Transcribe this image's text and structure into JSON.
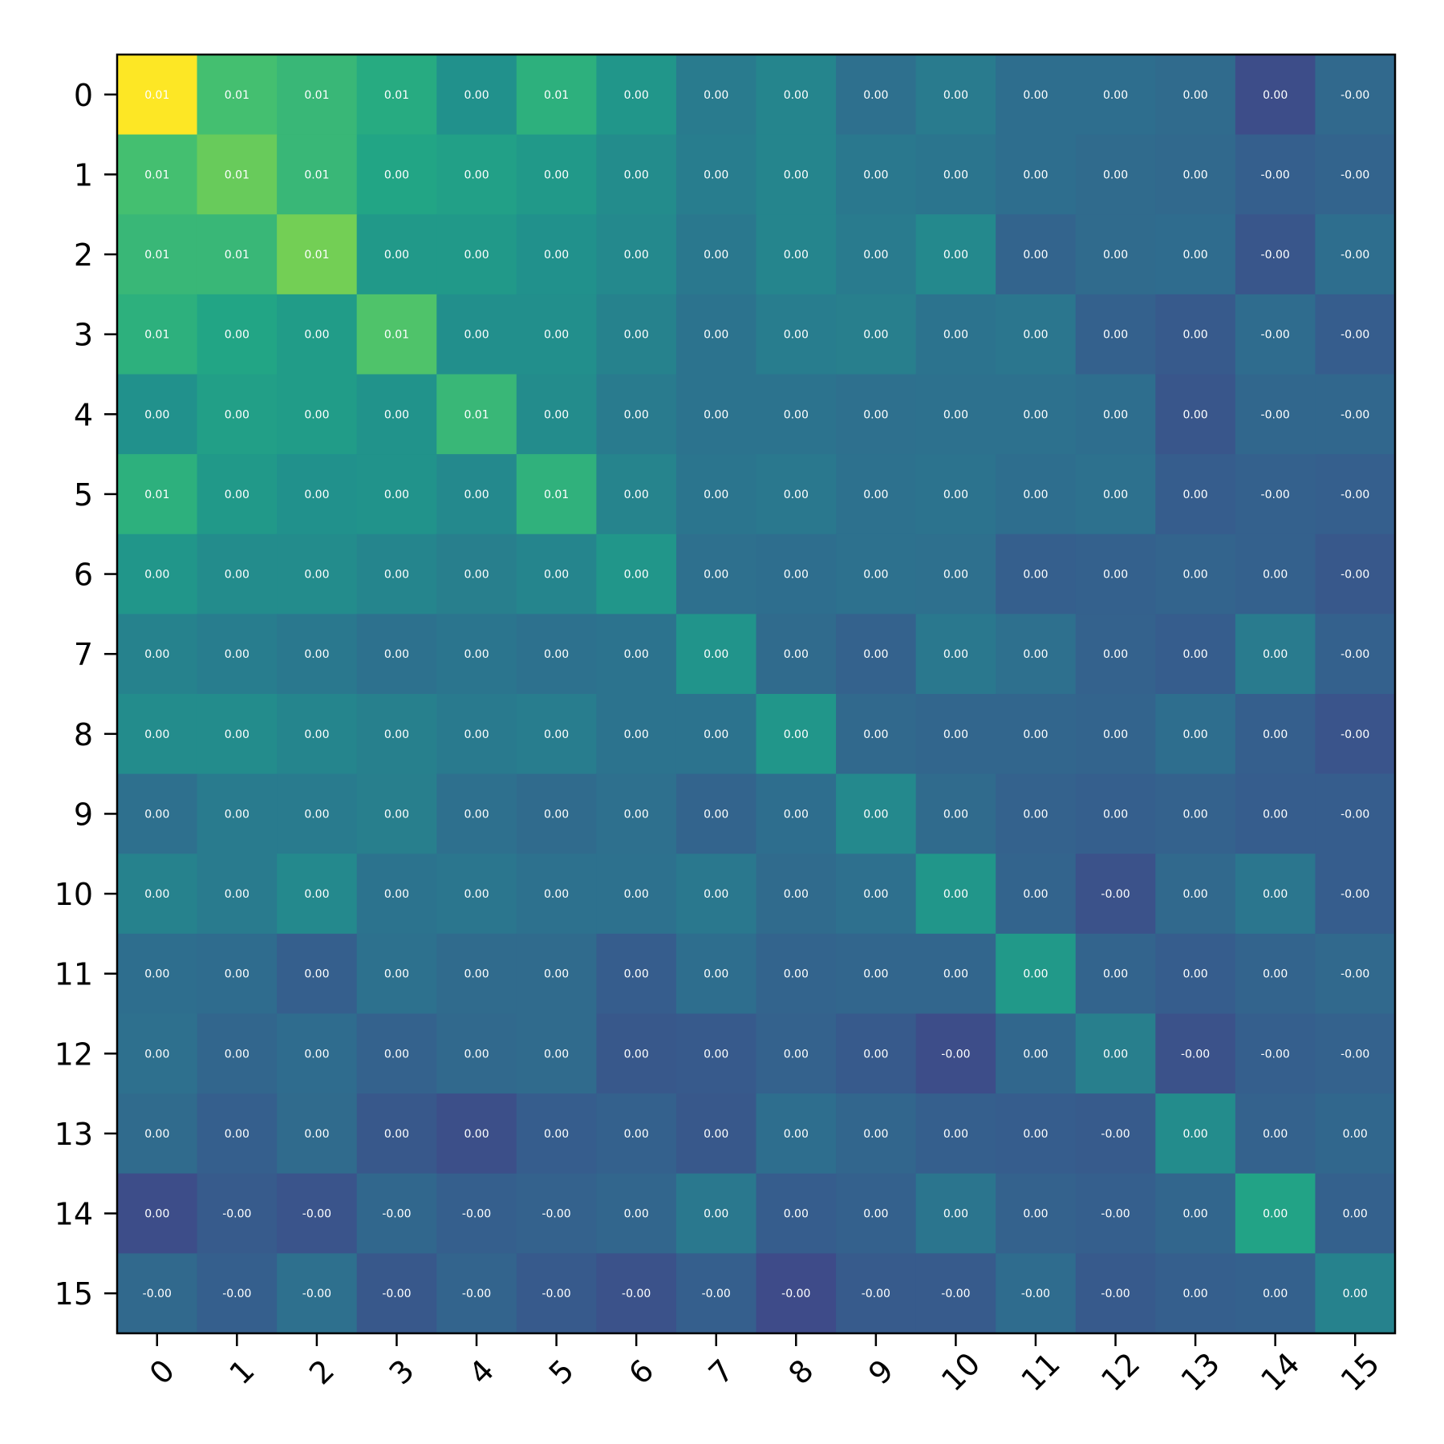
{
  "chart_data": {
    "type": "heatmap",
    "title": "",
    "xlabel": "",
    "ylabel": "",
    "colormap": "viridis",
    "x_ticks": [
      "0",
      "1",
      "2",
      "3",
      "4",
      "5",
      "6",
      "7",
      "8",
      "9",
      "10",
      "11",
      "12",
      "13",
      "14",
      "15"
    ],
    "y_ticks": [
      "0",
      "1",
      "2",
      "3",
      "4",
      "5",
      "6",
      "7",
      "8",
      "9",
      "10",
      "11",
      "12",
      "13",
      "14",
      "15"
    ],
    "value_range": [
      -0.5,
      1.0
    ],
    "intensity": [
      [
        1.0,
        0.55,
        0.5,
        0.42,
        0.25,
        0.45,
        0.28,
        0.12,
        0.18,
        0.05,
        0.12,
        0.04,
        0.04,
        0.02,
        -0.15,
        0.01
      ],
      [
        0.55,
        0.65,
        0.5,
        0.38,
        0.35,
        0.3,
        0.22,
        0.13,
        0.18,
        0.1,
        0.08,
        0.04,
        0.02,
        0.01,
        -0.05,
        -0.02
      ],
      [
        0.5,
        0.5,
        0.68,
        0.3,
        0.3,
        0.25,
        0.2,
        0.1,
        0.18,
        0.12,
        0.2,
        -0.02,
        0.02,
        0.03,
        -0.1,
        0.04
      ],
      [
        0.45,
        0.38,
        0.32,
        0.58,
        0.24,
        0.24,
        0.16,
        0.07,
        0.13,
        0.14,
        0.07,
        0.09,
        -0.04,
        -0.08,
        0.03,
        -0.06
      ],
      [
        0.25,
        0.34,
        0.32,
        0.26,
        0.5,
        0.22,
        0.12,
        0.07,
        0.07,
        0.05,
        0.06,
        0.06,
        0.04,
        -0.1,
        0.0,
        0.0
      ],
      [
        0.45,
        0.3,
        0.25,
        0.26,
        0.2,
        0.46,
        0.17,
        0.08,
        0.1,
        0.06,
        0.07,
        0.04,
        0.06,
        -0.06,
        -0.04,
        -0.05
      ],
      [
        0.28,
        0.22,
        0.22,
        0.18,
        0.14,
        0.18,
        0.28,
        0.05,
        0.04,
        0.06,
        0.05,
        -0.05,
        -0.04,
        -0.02,
        -0.04,
        -0.09
      ],
      [
        0.16,
        0.13,
        0.1,
        0.06,
        0.08,
        0.06,
        0.07,
        0.27,
        0.02,
        -0.03,
        0.1,
        0.05,
        -0.03,
        -0.06,
        0.12,
        -0.04
      ],
      [
        0.22,
        0.22,
        0.18,
        0.15,
        0.11,
        0.13,
        0.07,
        0.07,
        0.28,
        0.01,
        -0.01,
        -0.01,
        -0.02,
        0.04,
        -0.05,
        -0.11
      ],
      [
        0.05,
        0.12,
        0.12,
        0.14,
        0.05,
        0.02,
        0.05,
        -0.02,
        0.04,
        0.2,
        0.02,
        -0.03,
        -0.05,
        -0.03,
        -0.06,
        -0.06
      ],
      [
        0.16,
        0.12,
        0.2,
        0.07,
        0.09,
        0.06,
        0.06,
        0.1,
        0.02,
        0.05,
        0.28,
        -0.02,
        -0.12,
        0.01,
        0.09,
        -0.06
      ],
      [
        0.04,
        0.03,
        -0.05,
        0.06,
        0.02,
        0.02,
        -0.06,
        0.04,
        -0.02,
        -0.01,
        -0.01,
        0.3,
        -0.02,
        -0.06,
        -0.02,
        0.01
      ],
      [
        0.05,
        -0.01,
        0.03,
        -0.03,
        0.01,
        0.02,
        -0.09,
        -0.08,
        -0.03,
        -0.08,
        -0.15,
        0.0,
        0.14,
        -0.12,
        -0.05,
        -0.03
      ],
      [
        0.02,
        -0.05,
        0.02,
        -0.09,
        -0.14,
        -0.06,
        -0.04,
        -0.09,
        0.04,
        -0.01,
        -0.05,
        -0.06,
        -0.07,
        0.22,
        -0.03,
        0.0
      ],
      [
        -0.15,
        -0.07,
        -0.11,
        0.0,
        -0.05,
        -0.03,
        -0.01,
        0.1,
        -0.06,
        -0.04,
        0.08,
        -0.03,
        -0.05,
        -0.01,
        0.37,
        -0.04
      ],
      [
        0.01,
        -0.05,
        0.05,
        -0.09,
        -0.02,
        -0.08,
        -0.12,
        -0.05,
        -0.16,
        -0.07,
        -0.07,
        0.03,
        -0.08,
        -0.05,
        -0.04,
        0.16
      ]
    ],
    "cell_labels": [
      [
        "0.01",
        "0.01",
        "0.01",
        "0.01",
        "0.00",
        "0.01",
        "0.00",
        "0.00",
        "0.00",
        "0.00",
        "0.00",
        "0.00",
        "0.00",
        "0.00",
        "0.00",
        "-0.00"
      ],
      [
        "0.01",
        "0.01",
        "0.01",
        "0.00",
        "0.00",
        "0.00",
        "0.00",
        "0.00",
        "0.00",
        "0.00",
        "0.00",
        "0.00",
        "0.00",
        "0.00",
        "-0.00",
        "-0.00"
      ],
      [
        "0.01",
        "0.01",
        "0.01",
        "0.00",
        "0.00",
        "0.00",
        "0.00",
        "0.00",
        "0.00",
        "0.00",
        "0.00",
        "0.00",
        "0.00",
        "0.00",
        "-0.00",
        "-0.00"
      ],
      [
        "0.01",
        "0.00",
        "0.00",
        "0.01",
        "0.00",
        "0.00",
        "0.00",
        "0.00",
        "0.00",
        "0.00",
        "0.00",
        "0.00",
        "0.00",
        "0.00",
        "-0.00",
        "-0.00"
      ],
      [
        "0.00",
        "0.00",
        "0.00",
        "0.00",
        "0.01",
        "0.00",
        "0.00",
        "0.00",
        "0.00",
        "0.00",
        "0.00",
        "0.00",
        "0.00",
        "0.00",
        "-0.00",
        "-0.00"
      ],
      [
        "0.01",
        "0.00",
        "0.00",
        "0.00",
        "0.00",
        "0.01",
        "0.00",
        "0.00",
        "0.00",
        "0.00",
        "0.00",
        "0.00",
        "0.00",
        "0.00",
        "-0.00",
        "-0.00"
      ],
      [
        "0.00",
        "0.00",
        "0.00",
        "0.00",
        "0.00",
        "0.00",
        "0.00",
        "0.00",
        "0.00",
        "0.00",
        "0.00",
        "0.00",
        "0.00",
        "0.00",
        "0.00",
        "-0.00"
      ],
      [
        "0.00",
        "0.00",
        "0.00",
        "0.00",
        "0.00",
        "0.00",
        "0.00",
        "0.00",
        "0.00",
        "0.00",
        "0.00",
        "0.00",
        "0.00",
        "0.00",
        "0.00",
        "-0.00"
      ],
      [
        "0.00",
        "0.00",
        "0.00",
        "0.00",
        "0.00",
        "0.00",
        "0.00",
        "0.00",
        "0.00",
        "0.00",
        "0.00",
        "0.00",
        "0.00",
        "0.00",
        "0.00",
        "-0.00"
      ],
      [
        "0.00",
        "0.00",
        "0.00",
        "0.00",
        "0.00",
        "0.00",
        "0.00",
        "0.00",
        "0.00",
        "0.00",
        "0.00",
        "0.00",
        "0.00",
        "0.00",
        "0.00",
        "-0.00"
      ],
      [
        "0.00",
        "0.00",
        "0.00",
        "0.00",
        "0.00",
        "0.00",
        "0.00",
        "0.00",
        "0.00",
        "0.00",
        "0.00",
        "0.00",
        "-0.00",
        "0.00",
        "0.00",
        "-0.00"
      ],
      [
        "0.00",
        "0.00",
        "0.00",
        "0.00",
        "0.00",
        "0.00",
        "0.00",
        "0.00",
        "0.00",
        "0.00",
        "0.00",
        "0.00",
        "0.00",
        "0.00",
        "0.00",
        "-0.00"
      ],
      [
        "0.00",
        "0.00",
        "0.00",
        "0.00",
        "0.00",
        "0.00",
        "0.00",
        "0.00",
        "0.00",
        "0.00",
        "-0.00",
        "0.00",
        "0.00",
        "-0.00",
        "-0.00",
        "-0.00"
      ],
      [
        "0.00",
        "0.00",
        "0.00",
        "0.00",
        "0.00",
        "0.00",
        "0.00",
        "0.00",
        "0.00",
        "0.00",
        "0.00",
        "0.00",
        "-0.00",
        "0.00",
        "0.00",
        "0.00"
      ],
      [
        "0.00",
        "-0.00",
        "-0.00",
        "-0.00",
        "-0.00",
        "-0.00",
        "0.00",
        "0.00",
        "0.00",
        "0.00",
        "0.00",
        "0.00",
        "-0.00",
        "0.00",
        "0.00",
        "0.00"
      ],
      [
        "-0.00",
        "-0.00",
        "-0.00",
        "-0.00",
        "-0.00",
        "-0.00",
        "-0.00",
        "-0.00",
        "-0.00",
        "-0.00",
        "-0.00",
        "-0.00",
        "-0.00",
        "0.00",
        "0.00",
        "0.00"
      ]
    ]
  }
}
